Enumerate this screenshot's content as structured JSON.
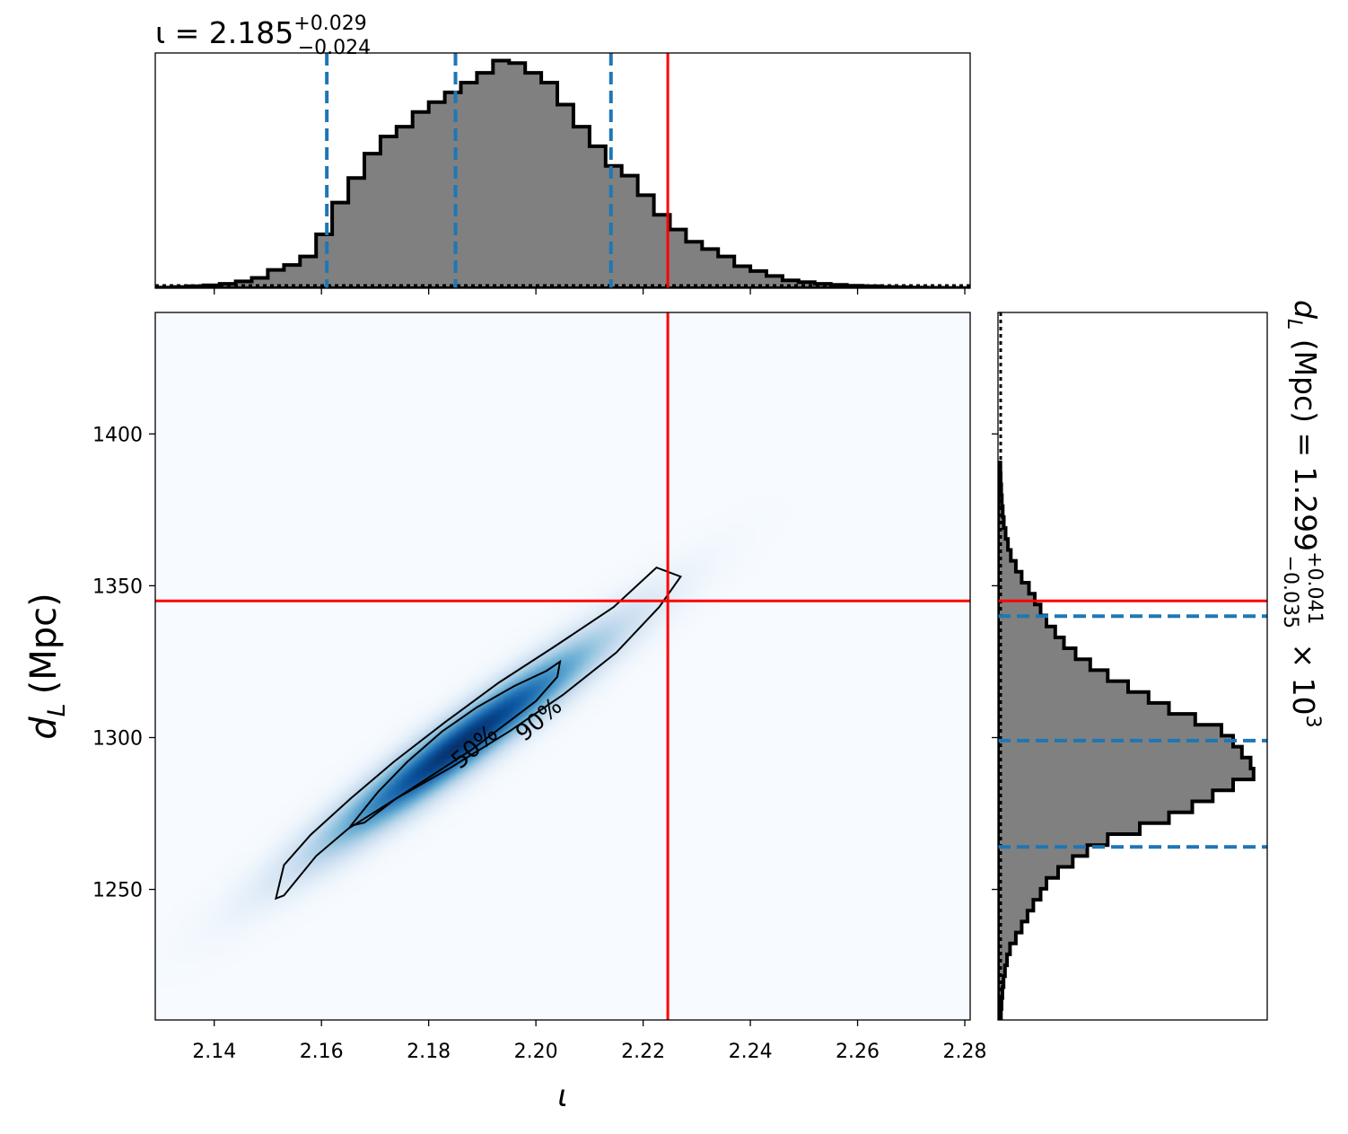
{
  "chart_data": [
    {
      "panel": "top-marginal",
      "type": "histogram",
      "title": {
        "base": "ι = 2.185",
        "sup": "+0.029",
        "sub": "−0.024"
      },
      "x_range": [
        2.129,
        2.281
      ],
      "x_ticks": [
        2.14,
        2.16,
        2.18,
        2.2,
        2.22,
        2.24,
        2.26,
        2.28
      ],
      "bins": {
        "start": 2.129,
        "width": 0.003,
        "values": [
          0.3,
          0.5,
          0.8,
          1.2,
          1.8,
          2.8,
          4.2,
          7.5,
          9.5,
          13,
          22,
          35,
          45,
          55,
          62,
          66,
          72,
          76,
          80,
          84,
          88,
          93,
          92,
          88,
          84,
          75,
          66,
          58,
          50,
          46,
          38,
          30,
          24,
          19,
          16,
          13,
          9,
          7,
          5,
          3.2,
          2.5,
          1.8,
          1.4,
          1.0,
          0.8,
          0.5,
          0.4,
          0.3,
          0.2,
          0.15,
          0.1
        ]
      },
      "median": 2.185,
      "credible_interval": [
        2.161,
        2.214
      ],
      "injected_value": 2.2246
    },
    {
      "panel": "joint-density",
      "type": "heatmap",
      "xlabel": "ι",
      "ylabel": "d",
      "ylabel_sub": "L",
      "ylabel_unit": "(Mpc)",
      "x_range": [
        2.129,
        2.281
      ],
      "y_range": [
        1207,
        1440
      ],
      "x_ticks": [
        "2.14",
        "2.16",
        "2.18",
        "2.20",
        "2.22",
        "2.24",
        "2.26",
        "2.28"
      ],
      "y_ticks": [
        "1250",
        "1300",
        "1350",
        "1400"
      ],
      "density": {
        "center": [
          2.186,
          1298
        ],
        "sigma_x": 0.0162,
        "sigma_y": 21.5,
        "correlation": 0.955
      },
      "contour_levels": [
        {
          "label": "50%",
          "points": [
            [
              2.1655,
              1271
            ],
            [
              2.1705,
              1282
            ],
            [
              2.176,
              1292
            ],
            [
              2.1825,
              1302
            ],
            [
              2.189,
              1310
            ],
            [
              2.196,
              1317
            ],
            [
              2.202,
              1322
            ],
            [
              2.2045,
              1325
            ],
            [
              2.204,
              1320
            ],
            [
              2.2,
              1312
            ],
            [
              2.194,
              1304
            ],
            [
              2.188,
              1296
            ],
            [
              2.181,
              1288
            ],
            [
              2.174,
              1280
            ],
            [
              2.168,
              1272
            ]
          ]
        },
        {
          "label": "90%",
          "points": [
            [
              2.1515,
              1247
            ],
            [
              2.153,
              1258
            ],
            [
              2.158,
              1268
            ],
            [
              2.1655,
              1280
            ],
            [
              2.1735,
              1292
            ],
            [
              2.183,
              1305
            ],
            [
              2.193,
              1318
            ],
            [
              2.2035,
              1330
            ],
            [
              2.2145,
              1343
            ],
            [
              2.2225,
              1356
            ],
            [
              2.227,
              1353
            ],
            [
              2.223,
              1343
            ],
            [
              2.215,
              1328
            ],
            [
              2.205,
              1314
            ],
            [
              2.195,
              1302
            ],
            [
              2.184,
              1290
            ],
            [
              2.174,
              1280
            ],
            [
              2.165,
              1270
            ],
            [
              2.159,
              1261
            ],
            [
              2.153,
              1248
            ]
          ]
        }
      ],
      "injected_point": [
        2.2246,
        1345
      ]
    },
    {
      "panel": "right-marginal",
      "type": "histogram",
      "orientation": "horizontal",
      "title": {
        "base": "d",
        "base_sub": "L",
        "mid": " (Mpc) = 1.299",
        "sup": "+0.041",
        "sub": "−0.035",
        "post": " × 10",
        "exp": "3"
      },
      "y_range": [
        1207,
        1440
      ],
      "bins": {
        "start": 1207,
        "width": 3.6,
        "values": [
          0.4,
          0.6,
          0.9,
          1.3,
          1.8,
          2.5,
          3.5,
          5.5,
          7.5,
          9.5,
          11.5,
          14,
          16,
          20,
          25,
          30,
          37,
          48,
          58,
          66,
          73,
          80,
          87,
          86,
          83,
          80,
          76,
          67,
          58,
          51,
          44,
          37,
          31,
          26,
          22,
          19,
          16,
          14,
          12,
          10,
          7.5,
          5.5,
          3.8,
          2.8,
          2,
          1.4,
          1,
          0.7,
          0.5,
          0.3,
          0.2
        ]
      },
      "median": 1299,
      "credible_interval": [
        1264,
        1340
      ],
      "injected_value": 1345
    }
  ],
  "colors": {
    "hist_fill": "#808080",
    "hist_edge": "#000000",
    "quantile": "#1f77b4",
    "truth": "#ff0000",
    "cmap": "Blues"
  }
}
